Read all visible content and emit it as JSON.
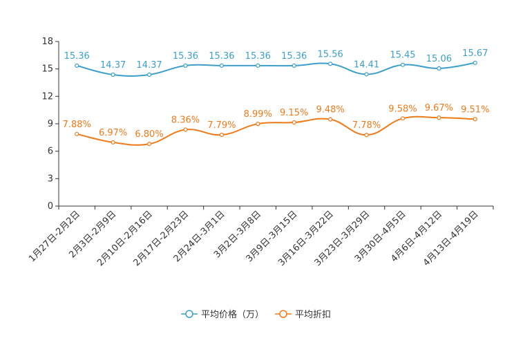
{
  "chart_data": {
    "type": "line",
    "title": "",
    "xlabel": "",
    "ylabel": "",
    "ylim": [
      0,
      18
    ],
    "yticks": [
      0,
      3,
      6,
      9,
      12,
      15,
      18
    ],
    "categories": [
      "1月27日-2月2日",
      "2月3日-2月9日",
      "2月10日-2月16日",
      "2月17日-2月23日",
      "2月24日-3月1日",
      "3月2日-3月8日",
      "3月9日-3月15日",
      "3月16日-3月22日",
      "3月23日-3月29日",
      "3月30日-4月5日",
      "4月6日-4月12日",
      "4月13日-4月19日"
    ],
    "series": [
      {
        "name": "平均价格（万）",
        "color": "#3c9fca",
        "values": [
          15.36,
          14.37,
          14.37,
          15.36,
          15.36,
          15.36,
          15.36,
          15.56,
          14.41,
          15.45,
          15.06,
          15.67
        ],
        "labels": [
          "15.36",
          "14.37",
          "14.37",
          "15.36",
          "15.36",
          "15.36",
          "15.36",
          "15.56",
          "14.41",
          "15.45",
          "15.06",
          "15.67"
        ]
      },
      {
        "name": "平均折扣",
        "color": "#f07a1a",
        "values": [
          7.88,
          6.97,
          6.8,
          8.36,
          7.79,
          8.99,
          9.15,
          9.48,
          7.78,
          9.58,
          9.67,
          9.51
        ],
        "labels": [
          "7.88%",
          "6.97%",
          "6.80%",
          "8.36%",
          "7.79%",
          "8.99%",
          "9.15%",
          "9.48%",
          "7.78%",
          "9.58%",
          "9.67%",
          "9.51%"
        ]
      }
    ],
    "legend_position": "bottom-center",
    "grid": false
  }
}
